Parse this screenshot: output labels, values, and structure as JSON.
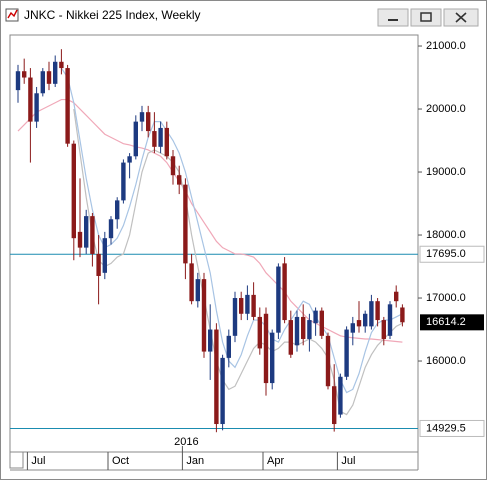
{
  "window_title": "JNKC - Nikkei 225 Index, Weekly",
  "chart_data": {
    "type": "candlestick",
    "categories": [
      null,
      null,
      "Jul",
      null,
      null,
      null,
      null,
      null,
      null,
      null,
      null,
      null,
      null,
      null,
      null,
      "Oct",
      null,
      null,
      null,
      null,
      null,
      null,
      null,
      null,
      null,
      null,
      null,
      "Jan",
      null,
      null,
      null,
      null,
      null,
      null,
      null,
      null,
      null,
      null,
      null,
      null,
      "Apr",
      null,
      null,
      null,
      null,
      null,
      null,
      null,
      null,
      null,
      null,
      null,
      "Jul",
      null,
      null,
      null,
      null,
      null,
      null,
      null,
      null,
      null,
      null
    ],
    "year_label": "2016",
    "open": [
      20300,
      20600,
      20500,
      19800,
      20250,
      20600,
      20400,
      20750,
      20650,
      19450,
      18050,
      17800,
      18300,
      17700,
      17400,
      17950,
      18250,
      18550,
      19150,
      19250,
      19800,
      19950,
      19650,
      19400,
      19700,
      19250,
      18950,
      18800,
      17550,
      16950,
      17300,
      16150,
      16500,
      15000,
      16050,
      16400,
      17000,
      16750,
      17050,
      16700,
      16750,
      15650,
      16450,
      17550,
      16650,
      16250,
      16700,
      16350,
      16600,
      16800,
      16400,
      15600,
      15150,
      15750,
      16450,
      16650,
      16550,
      16550,
      16950,
      16650,
      16400,
      17100,
      16850
    ],
    "high": [
      20700,
      20800,
      20650,
      20350,
      20650,
      20750,
      20850,
      20950,
      20700,
      19500,
      18900,
      18400,
      18350,
      18000,
      18050,
      18300,
      18600,
      19200,
      19300,
      19900,
      20050,
      20050,
      19950,
      19800,
      19800,
      19350,
      19100,
      18900,
      17700,
      17400,
      17400,
      16900,
      16600,
      16100,
      16500,
      17100,
      17100,
      17200,
      17250,
      16850,
      16850,
      16500,
      17550,
      17650,
      16800,
      16800,
      16900,
      16750,
      16850,
      16850,
      16450,
      15950,
      15800,
      16550,
      16700,
      16950,
      16800,
      17050,
      17000,
      16700,
      16950,
      17200,
      16900
    ],
    "low": [
      20100,
      20400,
      19150,
      19700,
      20200,
      20300,
      20350,
      20550,
      19400,
      17600,
      17650,
      17700,
      17500,
      16900,
      17300,
      17850,
      18100,
      18500,
      18900,
      19200,
      19650,
      19550,
      19300,
      19300,
      19200,
      18800,
      18650,
      17300,
      16900,
      16850,
      16050,
      15700,
      14870,
      14900,
      15900,
      16300,
      16650,
      16650,
      16650,
      16100,
      15450,
      15550,
      16350,
      16600,
      16050,
      16150,
      16250,
      16150,
      16400,
      16350,
      15550,
      14880,
      15100,
      15700,
      16250,
      16450,
      16450,
      16500,
      16550,
      16250,
      16350,
      16850,
      16550
    ],
    "close": [
      20600,
      20500,
      19800,
      20250,
      20600,
      20400,
      20750,
      20650,
      19450,
      17950,
      17800,
      18300,
      17700,
      17350,
      17950,
      18250,
      18550,
      19150,
      19250,
      19800,
      19950,
      19650,
      19400,
      19700,
      19250,
      18950,
      18800,
      17550,
      16950,
      17300,
      16150,
      16500,
      15000,
      16050,
      16400,
      17000,
      16750,
      17050,
      16700,
      16200,
      15650,
      16450,
      17500,
      16650,
      16100,
      16700,
      16350,
      16650,
      16800,
      16400,
      15600,
      15000,
      15750,
      16500,
      16600,
      16550,
      16750,
      16950,
      16650,
      16350,
      16900,
      16950,
      16614.2
    ],
    "up_color": "#1d3a80",
    "down_color": "#8b1a1a",
    "lines": [
      {
        "color": "#f0a8b8",
        "values": [
          19650,
          19750,
          19850,
          19950,
          20000,
          20050,
          20100,
          20150,
          20150,
          20100,
          20000,
          19900,
          19800,
          19700,
          19600,
          19550,
          19500,
          19450,
          19430,
          19400,
          19380,
          19350,
          19300,
          19250,
          19150,
          19000,
          18850,
          18700,
          18500,
          18350,
          18200,
          18050,
          17900,
          17800,
          17750,
          17700,
          17700,
          17680,
          17650,
          17550,
          17400,
          17300,
          17200,
          17100,
          16950,
          16850,
          16750,
          16650,
          16600,
          16550,
          16500,
          16450,
          16400,
          16380,
          16370,
          16360,
          16350,
          16350,
          16340,
          16330,
          16320,
          16310,
          16300
        ]
      },
      {
        "color": "#a8c4e4",
        "values": [
          null,
          null,
          null,
          null,
          null,
          null,
          null,
          20650,
          20500,
          20100,
          19500,
          18900,
          18400,
          18000,
          17800,
          17850,
          17950,
          18150,
          18450,
          18800,
          19200,
          19550,
          19800,
          19800,
          19650,
          19500,
          19300,
          19000,
          18600,
          18200,
          17800,
          17400,
          16800,
          16300,
          16000,
          15900,
          16100,
          16400,
          16650,
          16650,
          16550,
          16350,
          16300,
          16500,
          16650,
          16800,
          16950,
          16900,
          16700,
          16550,
          16400,
          16050,
          15700,
          15500,
          15550,
          15800,
          16150,
          16450,
          16600,
          16650,
          16650,
          16700,
          16750
        ]
      },
      {
        "color": "#c0c0c0",
        "values": [
          null,
          null,
          null,
          null,
          null,
          null,
          null,
          null,
          null,
          20000,
          19300,
          18600,
          18000,
          17600,
          17500,
          17550,
          17650,
          17700,
          18000,
          18500,
          19000,
          19300,
          19350,
          19300,
          19250,
          19150,
          19000,
          18600,
          18000,
          17500,
          17000,
          16500,
          16000,
          15700,
          15550,
          15600,
          15800,
          16000,
          16200,
          16300,
          16250,
          16150,
          16200,
          16300,
          16300,
          16250,
          16300,
          16350,
          16300,
          16200,
          16050,
          15700,
          15200,
          15150,
          15300,
          15600,
          15900,
          16100,
          16250,
          16350,
          16450,
          16550,
          16600
        ]
      }
    ],
    "hlines": [
      {
        "value": 17695,
        "label": "17695.0"
      },
      {
        "value": 14929.5,
        "label": "14929.5"
      }
    ],
    "hline_color": "#1a8cb0",
    "last_price": {
      "value": 16614.2,
      "label": "16614.2"
    },
    "ylim": [
      14556,
      21175
    ],
    "yticks": [
      {
        "value": 16000,
        "label": "16000.0"
      },
      {
        "value": 17000,
        "label": "17000.0"
      },
      {
        "value": 18000,
        "label": "18000.0"
      },
      {
        "value": 19000,
        "label": "19000.0"
      },
      {
        "value": 20000,
        "label": "20000.0"
      },
      {
        "value": 21000,
        "label": "21000.0"
      }
    ]
  }
}
